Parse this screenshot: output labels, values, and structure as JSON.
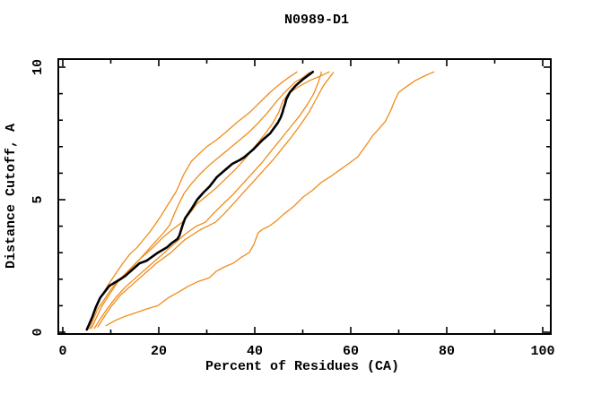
{
  "title": "N0989-D1",
  "chart_data": {
    "type": "line",
    "title": "N0989-D1",
    "xlabel": "Percent of Residues (CA)",
    "ylabel": "Distance Cutoff, A",
    "xlim": [
      0,
      100
    ],
    "ylim": [
      0,
      10
    ],
    "grid": false,
    "legend": "none",
    "frame": "full-box-with-mirrored-inward-ticks",
    "colors": {
      "accent_orange": "#ef8c1a",
      "main_black": "#000000"
    },
    "x_axis": {
      "major": [
        0,
        20,
        40,
        60,
        80,
        100
      ],
      "labels": [
        "0",
        "20",
        "40",
        "60",
        "80",
        "100"
      ],
      "minor": [
        10,
        30,
        50,
        70,
        90
      ]
    },
    "y_axis": {
      "major": [
        0,
        5,
        10
      ],
      "labels": [
        "0",
        "5",
        "10"
      ],
      "minor": [
        1,
        2,
        3,
        4,
        6,
        7,
        8,
        9
      ]
    },
    "series": [
      {
        "name": "orange-1",
        "color": "#ef8c1a",
        "width": 1.3,
        "points": [
          [
            5.2,
            0.12
          ],
          [
            5.8,
            0.4
          ],
          [
            6.5,
            0.75
          ],
          [
            7.4,
            1.1
          ],
          [
            8.3,
            1.45
          ],
          [
            9.5,
            1.8
          ],
          [
            11,
            2.2
          ],
          [
            12.5,
            2.6
          ],
          [
            14,
            2.95
          ],
          [
            15.5,
            3.2
          ],
          [
            16.4,
            3.4
          ],
          [
            18,
            3.75
          ],
          [
            19.2,
            4.05
          ],
          [
            20.5,
            4.4
          ],
          [
            21.7,
            4.75
          ],
          [
            23.6,
            5.3
          ],
          [
            25.2,
            5.95
          ],
          [
            26.8,
            6.45
          ],
          [
            28.2,
            6.7
          ],
          [
            30,
            7.0
          ],
          [
            32,
            7.25
          ],
          [
            34,
            7.55
          ],
          [
            36.5,
            7.95
          ],
          [
            39,
            8.3
          ],
          [
            41.5,
            8.75
          ],
          [
            43.5,
            9.1
          ],
          [
            45.5,
            9.4
          ],
          [
            47,
            9.6
          ],
          [
            48.8,
            9.82
          ]
        ]
      },
      {
        "name": "orange-2",
        "color": "#ef8c1a",
        "width": 1.3,
        "points": [
          [
            5.6,
            0.12
          ],
          [
            6.3,
            0.45
          ],
          [
            7.2,
            0.85
          ],
          [
            8.5,
            1.2
          ],
          [
            10,
            1.6
          ],
          [
            11.5,
            1.95
          ],
          [
            13,
            2.2
          ],
          [
            15,
            2.55
          ],
          [
            17,
            2.95
          ],
          [
            19,
            3.35
          ],
          [
            21,
            3.75
          ],
          [
            22.3,
            4.05
          ],
          [
            23.2,
            4.45
          ],
          [
            24.2,
            4.85
          ],
          [
            25.3,
            5.25
          ],
          [
            26.8,
            5.6
          ],
          [
            28.5,
            5.95
          ],
          [
            30.5,
            6.3
          ],
          [
            32.5,
            6.6
          ],
          [
            34.5,
            6.9
          ],
          [
            36.5,
            7.2
          ],
          [
            38.5,
            7.5
          ],
          [
            40.5,
            7.85
          ],
          [
            42.5,
            8.25
          ],
          [
            44.5,
            8.7
          ],
          [
            46.5,
            9.1
          ],
          [
            48.5,
            9.45
          ],
          [
            50,
            9.6
          ],
          [
            51.4,
            9.8
          ]
        ]
      },
      {
        "name": "orange-3",
        "color": "#ef8c1a",
        "width": 1.3,
        "points": [
          [
            6.0,
            0.15
          ],
          [
            7.0,
            0.55
          ],
          [
            8.2,
            1.0
          ],
          [
            9.8,
            1.45
          ],
          [
            11.5,
            1.9
          ],
          [
            13.8,
            2.35
          ],
          [
            16,
            2.75
          ],
          [
            18.5,
            3.15
          ],
          [
            21,
            3.6
          ],
          [
            23,
            3.9
          ],
          [
            24.9,
            4.15
          ],
          [
            26.5,
            4.5
          ],
          [
            28,
            4.85
          ],
          [
            30,
            5.15
          ],
          [
            32,
            5.45
          ],
          [
            34,
            5.8
          ],
          [
            36,
            6.15
          ],
          [
            38,
            6.55
          ],
          [
            40,
            7.0
          ],
          [
            42,
            7.45
          ],
          [
            43.8,
            7.9
          ],
          [
            45,
            8.3
          ],
          [
            45.8,
            8.7
          ],
          [
            47,
            9.0
          ],
          [
            49,
            9.25
          ],
          [
            51.5,
            9.5
          ],
          [
            53.5,
            9.65
          ],
          [
            55.5,
            9.82
          ]
        ]
      },
      {
        "name": "orange-4",
        "color": "#ef8c1a",
        "width": 1.3,
        "points": [
          [
            6.6,
            0.15
          ],
          [
            7.8,
            0.5
          ],
          [
            9.3,
            0.9
          ],
          [
            11,
            1.3
          ],
          [
            13,
            1.7
          ],
          [
            15.5,
            2.1
          ],
          [
            18,
            2.5
          ],
          [
            20.5,
            2.9
          ],
          [
            23,
            3.3
          ],
          [
            25.5,
            3.7
          ],
          [
            27.8,
            4.0
          ],
          [
            29.7,
            4.15
          ],
          [
            31.5,
            4.5
          ],
          [
            33.5,
            4.85
          ],
          [
            35.5,
            5.2
          ],
          [
            37.5,
            5.6
          ],
          [
            39.5,
            6.0
          ],
          [
            41.5,
            6.4
          ],
          [
            43.5,
            6.85
          ],
          [
            45.5,
            7.3
          ],
          [
            47.5,
            7.75
          ],
          [
            49.5,
            8.2
          ],
          [
            51,
            8.6
          ],
          [
            52.3,
            9.0
          ],
          [
            53.2,
            9.4
          ],
          [
            53.9,
            9.82
          ]
        ]
      },
      {
        "name": "orange-5",
        "color": "#ef8c1a",
        "width": 1.3,
        "points": [
          [
            7.3,
            0.2
          ],
          [
            8.5,
            0.55
          ],
          [
            10,
            0.95
          ],
          [
            12,
            1.4
          ],
          [
            14.5,
            1.8
          ],
          [
            17,
            2.2
          ],
          [
            19.5,
            2.6
          ],
          [
            22.5,
            3.0
          ],
          [
            25.5,
            3.5
          ],
          [
            28.5,
            3.85
          ],
          [
            31.8,
            4.15
          ],
          [
            33.8,
            4.5
          ],
          [
            35.8,
            4.9
          ],
          [
            37.8,
            5.3
          ],
          [
            39.8,
            5.7
          ],
          [
            41.8,
            6.1
          ],
          [
            43.8,
            6.5
          ],
          [
            45.8,
            6.95
          ],
          [
            47.8,
            7.4
          ],
          [
            49.8,
            7.9
          ],
          [
            51.3,
            8.3
          ],
          [
            52.8,
            8.8
          ],
          [
            54.3,
            9.3
          ],
          [
            56.4,
            9.8
          ]
        ]
      },
      {
        "name": "orange-outlier",
        "color": "#ef8c1a",
        "width": 1.3,
        "points": [
          [
            9,
            0.25
          ],
          [
            11,
            0.45
          ],
          [
            13,
            0.6
          ],
          [
            15.5,
            0.75
          ],
          [
            17.5,
            0.88
          ],
          [
            19.8,
            1.0
          ],
          [
            22,
            1.3
          ],
          [
            24,
            1.5
          ],
          [
            26,
            1.72
          ],
          [
            28,
            1.9
          ],
          [
            30.5,
            2.05
          ],
          [
            32,
            2.3
          ],
          [
            33.5,
            2.45
          ],
          [
            35.5,
            2.6
          ],
          [
            37,
            2.8
          ],
          [
            38.8,
            3.0
          ],
          [
            39.8,
            3.3
          ],
          [
            40.7,
            3.75
          ],
          [
            41.6,
            3.88
          ],
          [
            43,
            4.0
          ],
          [
            44.5,
            4.2
          ],
          [
            46,
            4.45
          ],
          [
            48.2,
            4.76
          ],
          [
            50.1,
            5.1
          ],
          [
            52,
            5.35
          ],
          [
            53.9,
            5.66
          ],
          [
            56,
            5.9
          ],
          [
            57.7,
            6.12
          ],
          [
            59.5,
            6.35
          ],
          [
            61.5,
            6.62
          ],
          [
            63.4,
            7.1
          ],
          [
            64.5,
            7.4
          ],
          [
            66,
            7.7
          ],
          [
            67.2,
            7.95
          ],
          [
            68.3,
            8.35
          ],
          [
            69.2,
            8.75
          ],
          [
            70,
            9.05
          ],
          [
            71.5,
            9.25
          ],
          [
            73.5,
            9.5
          ],
          [
            75.5,
            9.68
          ],
          [
            77.3,
            9.82
          ]
        ]
      },
      {
        "name": "black-main",
        "color": "#000000",
        "width": 2.6,
        "points": [
          [
            5.0,
            0.1
          ],
          [
            5.5,
            0.3
          ],
          [
            6.2,
            0.6
          ],
          [
            6.9,
            0.95
          ],
          [
            7.8,
            1.3
          ],
          [
            9.7,
            1.75
          ],
          [
            12,
            2.0
          ],
          [
            13,
            2.12
          ],
          [
            16,
            2.6
          ],
          [
            17.5,
            2.7
          ],
          [
            19.8,
            3.0
          ],
          [
            21.7,
            3.2
          ],
          [
            22.7,
            3.36
          ],
          [
            23.9,
            3.52
          ],
          [
            24.3,
            3.65
          ],
          [
            24.9,
            4.0
          ],
          [
            25.5,
            4.3
          ],
          [
            26.8,
            4.65
          ],
          [
            28.0,
            5.0
          ],
          [
            29.3,
            5.27
          ],
          [
            30.6,
            5.5
          ],
          [
            32.1,
            5.85
          ],
          [
            33.7,
            6.1
          ],
          [
            35.3,
            6.35
          ],
          [
            36.9,
            6.5
          ],
          [
            37.8,
            6.6
          ],
          [
            39.7,
            6.9
          ],
          [
            41.6,
            7.25
          ],
          [
            43.2,
            7.5
          ],
          [
            44.8,
            7.9
          ],
          [
            45.4,
            8.1
          ],
          [
            45.8,
            8.3
          ],
          [
            46.0,
            8.45
          ],
          [
            46.3,
            8.6
          ],
          [
            46.6,
            8.8
          ],
          [
            47.3,
            9.05
          ],
          [
            48.5,
            9.3
          ],
          [
            50.1,
            9.55
          ],
          [
            52.1,
            9.82
          ]
        ]
      }
    ]
  }
}
